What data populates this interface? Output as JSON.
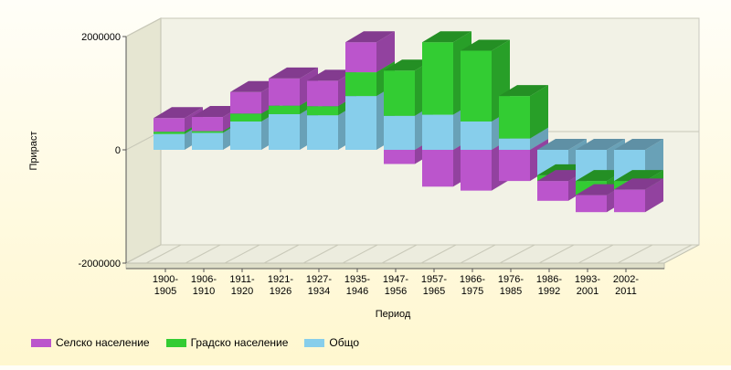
{
  "colors": {
    "rural": "#bb55cc",
    "urban": "#33cc33",
    "total": "#87ceeb"
  },
  "chart_data": {
    "type": "bar",
    "stacked": true,
    "three_d": true,
    "xlabel": "Период",
    "ylabel": "Прираст",
    "ylim": [
      -2000000,
      2000000
    ],
    "yticks": [
      "2000000",
      "0",
      "-2000000"
    ],
    "ytick_values": [
      2000000,
      0,
      -2000000
    ],
    "legend_position": "bottom-left",
    "grid": true,
    "categories": [
      [
        "1900-",
        "1905"
      ],
      [
        "1906-",
        "1910"
      ],
      [
        "1911-",
        "1920"
      ],
      [
        "1921-",
        "1926"
      ],
      [
        "1927-",
        "1934"
      ],
      [
        "1935-",
        "1946"
      ],
      [
        "1947-",
        "1956"
      ],
      [
        "1957-",
        "1965"
      ],
      [
        "1966-",
        "1975"
      ],
      [
        "1976-",
        "1985"
      ],
      [
        "1986-",
        "1992"
      ],
      [
        "1993-",
        "2001"
      ],
      [
        "2002-",
        "2011"
      ]
    ],
    "series": [
      {
        "name": "Общо",
        "key": "total",
        "values": [
          280000,
          300000,
          500000,
          630000,
          610000,
          950000,
          600000,
          620000,
          500000,
          200000,
          -450000,
          -550000,
          -550000
        ]
      },
      {
        "name": "Градско население",
        "key": "urban",
        "values": [
          40000,
          30000,
          140000,
          150000,
          160000,
          420000,
          800000,
          1280000,
          1250000,
          750000,
          -100000,
          -250000,
          -150000
        ]
      },
      {
        "name": "Селско население",
        "key": "rural",
        "values": [
          240000,
          250000,
          380000,
          480000,
          450000,
          530000,
          -250000,
          -650000,
          -720000,
          -550000,
          -350000,
          -300000,
          -400000
        ]
      }
    ]
  },
  "legend": [
    {
      "label": "Селско население",
      "key": "rural"
    },
    {
      "label": "Градско население",
      "key": "urban"
    },
    {
      "label": "Общо",
      "key": "total"
    }
  ]
}
